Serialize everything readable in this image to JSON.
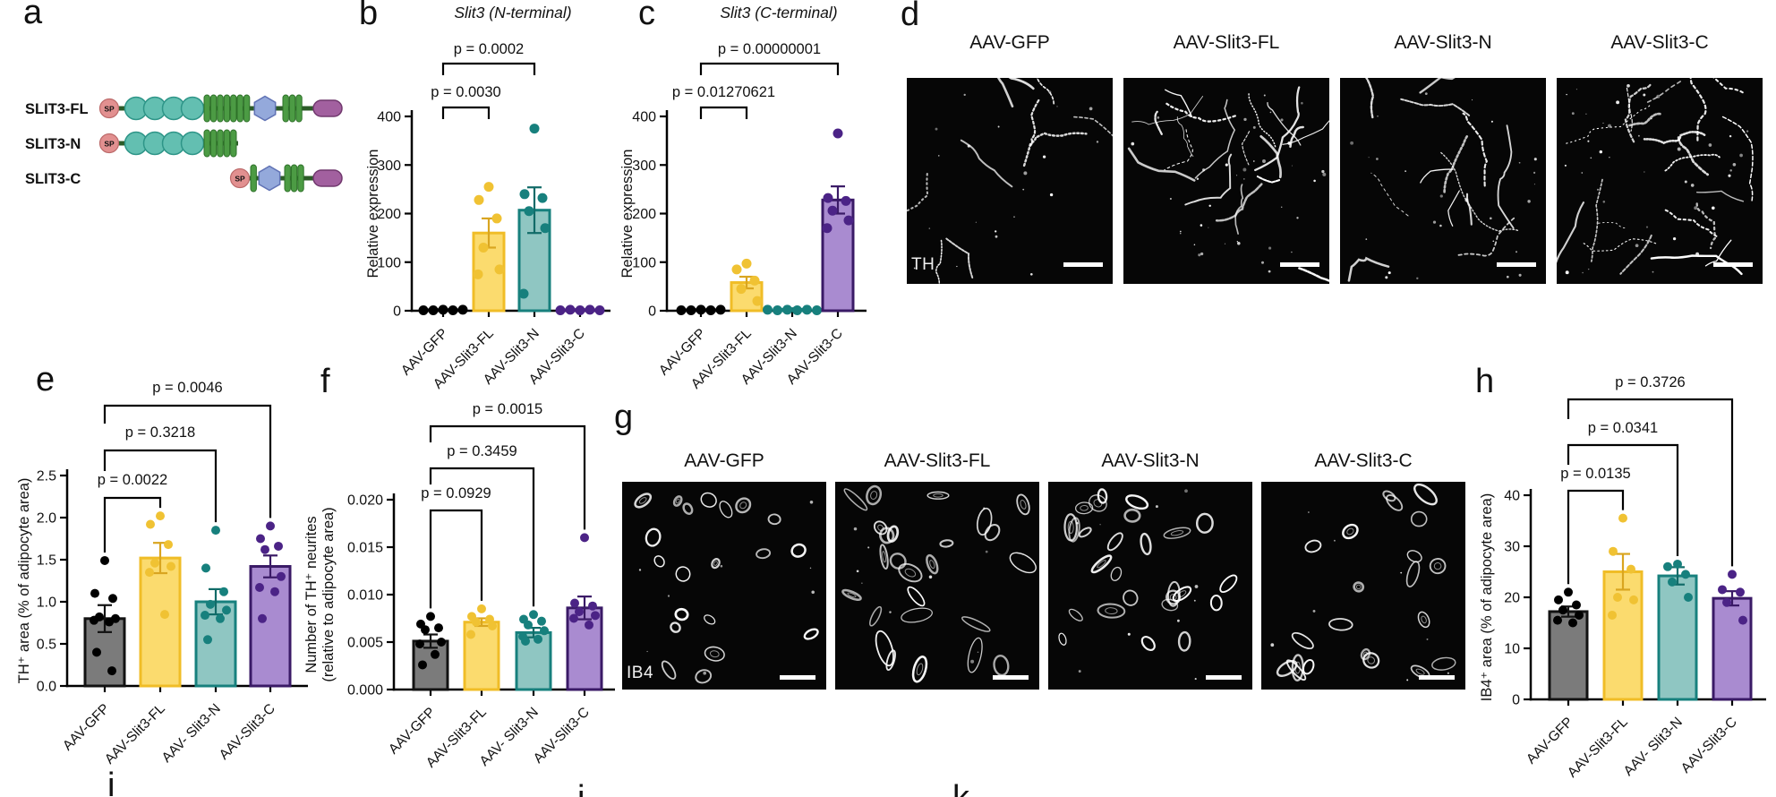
{
  "letters": {
    "a": "a",
    "b": "b",
    "c": "c",
    "d": "d",
    "e": "e",
    "f": "f",
    "g": "g",
    "h": "h",
    "i": "i",
    "j": "j",
    "k": "k"
  },
  "panel_a": {
    "sp_label": "SP",
    "rows": [
      {
        "label": "SLIT3-FL"
      },
      {
        "label": "SLIT3-N"
      },
      {
        "label": "SLIT3-C"
      }
    ],
    "colors": {
      "sp_fill": "#e29090",
      "sp_stroke": "#bc6a6a",
      "sp_text": "#731d1d",
      "lrr_fill": "#63bfb1",
      "lrr_stroke": "#2e9588",
      "egf_fill": "#4c9b44",
      "egf_stroke": "#2e7129",
      "hex_fill": "#94a9db",
      "hex_stroke": "#6173b5",
      "pill_fill": "#a2609f",
      "pill_stroke": "#71386e",
      "line": "#2c5b28"
    }
  },
  "colors": {
    "gfp": {
      "fill": "#7b7b7b",
      "stroke": "#121212",
      "point": "#000000",
      "err": "#121212"
    },
    "fl": {
      "fill": "#fbdb6e",
      "stroke": "#f0bd27",
      "point": "#f0c233",
      "err": "#d9a520"
    },
    "n": {
      "fill": "#8fc6c2",
      "stroke": "#17807d",
      "point": "#17807d",
      "err": "#116b68"
    },
    "c": {
      "fill": "#a98bd0",
      "stroke": "#3a1a66",
      "point": "#4b2386",
      "err": "#3a1a66"
    }
  },
  "chart_data": [
    {
      "id": "b",
      "type": "bar",
      "title": "Slit3 (N-terminal)",
      "ylabel": "Relative expression",
      "ylim": [
        0,
        400
      ],
      "ytick_values": [
        0,
        100,
        200,
        300,
        400
      ],
      "ytick_labels": [
        "0",
        "100",
        "200",
        "300",
        "400"
      ],
      "categories": [
        "AAV-GFP",
        "AAV-Slit3-FL",
        "AAV-Slit3-N",
        "AAV-Slit3-C"
      ],
      "cat_colors": [
        "gfp",
        "fl",
        "n",
        "c"
      ],
      "values": [
        2,
        160,
        207,
        2
      ],
      "errors": [
        1,
        30,
        47,
        1
      ],
      "points": [
        [
          1,
          1,
          2,
          1,
          2
        ],
        [
          255,
          228,
          190,
          130,
          85,
          75
        ],
        [
          375,
          240,
          232,
          205,
          170,
          35
        ],
        [
          1,
          2,
          1,
          2,
          1
        ]
      ],
      "pvalues": [
        {
          "label": "p = 0.0030",
          "from": 0,
          "to": 1
        },
        {
          "label": "p = 0.0002",
          "from": 0,
          "to": 2
        }
      ],
      "grid": false,
      "legend": "none"
    },
    {
      "id": "c",
      "type": "bar",
      "title": "Slit3 (C-terminal)",
      "ylabel": "Relative expression",
      "ylim": [
        0,
        400
      ],
      "ytick_values": [
        0,
        100,
        200,
        300,
        400
      ],
      "ytick_labels": [
        "0",
        "100",
        "200",
        "300",
        "400"
      ],
      "categories": [
        "AAV-GFP",
        "AAV-Slit3-FL",
        "AAV-Slit3-N",
        "AAV-Slit3-C"
      ],
      "cat_colors": [
        "gfp",
        "fl",
        "n",
        "c"
      ],
      "values": [
        2,
        58,
        3,
        228
      ],
      "errors": [
        1,
        12,
        2,
        28
      ],
      "points": [
        [
          1,
          1,
          2,
          1,
          2
        ],
        [
          97,
          85,
          62,
          45,
          20
        ],
        [
          2,
          1,
          2,
          1,
          2,
          1
        ],
        [
          365,
          232,
          226,
          206,
          186,
          170
        ]
      ],
      "pvalues": [
        {
          "label": "p = 0.01270621",
          "from": 0,
          "to": 1
        },
        {
          "label": "p = 0.00000001",
          "from": 0,
          "to": 3
        }
      ],
      "grid": false,
      "legend": "none"
    },
    {
      "id": "e",
      "type": "bar",
      "title": "",
      "ylabel": "TH⁺ area (% of adipocyte area)",
      "ylim": [
        0,
        2.5
      ],
      "ytick_values": [
        0,
        0.5,
        1,
        1.5,
        2,
        2.5
      ],
      "ytick_labels": [
        "0.0",
        "0.5",
        "1.0",
        "1.5",
        "2.0",
        "2.5"
      ],
      "categories": [
        "AAV-GFP",
        "AAV-Slit3-FL",
        "AAV- Slit3-N",
        "AAV-Slit3-C"
      ],
      "cat_colors": [
        "gfp",
        "fl",
        "n",
        "c"
      ],
      "values": [
        0.8,
        1.52,
        1.0,
        1.42
      ],
      "errors": [
        0.16,
        0.18,
        0.15,
        0.13
      ],
      "points": [
        [
          1.49,
          1.1,
          1.04,
          0.82,
          0.8,
          0.78,
          0.76,
          0.4,
          0.18
        ],
        [
          2.02,
          1.92,
          1.68,
          1.46,
          1.42,
          1.35,
          0.85
        ],
        [
          1.85,
          1.4,
          1.12,
          0.97,
          0.9,
          0.84,
          0.8,
          0.55
        ],
        [
          1.9,
          1.75,
          1.66,
          1.62,
          1.3,
          1.17,
          1.12,
          0.8
        ]
      ],
      "pvalues": [
        {
          "label": "p = 0.0022",
          "from": 0,
          "to": 1
        },
        {
          "label": "p = 0.3218",
          "from": 0,
          "to": 2
        },
        {
          "label": "p = 0.0046",
          "from": 0,
          "to": 3
        }
      ],
      "grid": false,
      "legend": "none"
    },
    {
      "id": "f",
      "type": "bar",
      "title": "",
      "ylabel": [
        "Number of TH⁺  neurites",
        "(relative to adipocyte area)"
      ],
      "ylim": [
        0,
        0.02
      ],
      "ytick_values": [
        0,
        0.005,
        0.01,
        0.015,
        0.02
      ],
      "ytick_labels": [
        "0.000",
        "0.005",
        "0.010",
        "0.015",
        "0.020"
      ],
      "categories": [
        "AAV-GFP",
        "AAV-Slit3-FL",
        "AAV- Slit3-N",
        "AAV-Slit3-C"
      ],
      "cat_colors": [
        "gfp",
        "fl",
        "n",
        "c"
      ],
      "values": [
        0.0051,
        0.0071,
        0.006,
        0.0086
      ],
      "errors": [
        0.0007,
        0.0004,
        0.0005,
        0.0012
      ],
      "points": [
        [
          0.0077,
          0.0069,
          0.0065,
          0.0063,
          0.005,
          0.0048,
          0.0037,
          0.0026
        ],
        [
          0.0085,
          0.0077,
          0.0074,
          0.0071,
          0.0067,
          0.0058
        ],
        [
          0.0079,
          0.0074,
          0.0072,
          0.0068,
          0.0062,
          0.0056,
          0.0053,
          0.0051
        ],
        [
          0.016,
          0.0091,
          0.0088,
          0.0082,
          0.0078,
          0.0075,
          0.0068
        ]
      ],
      "pvalues": [
        {
          "label": "p = 0.0929",
          "from": 0,
          "to": 1
        },
        {
          "label": "p = 0.3459",
          "from": 0,
          "to": 2
        },
        {
          "label": "p = 0.0015",
          "from": 0,
          "to": 3
        }
      ],
      "grid": false,
      "legend": "none"
    },
    {
      "id": "h",
      "type": "bar",
      "title": "",
      "ylabel": "IB4⁺  area (% of adipocyte area)",
      "ylim": [
        0,
        40
      ],
      "ytick_values": [
        0,
        10,
        20,
        30,
        40
      ],
      "ytick_labels": [
        "0",
        "10",
        "20",
        "30",
        "40"
      ],
      "categories": [
        "AAV-GFP",
        "AAV-Slit3-FL",
        "AAV- Slit3-N",
        "AAV-Slit3-C"
      ],
      "cat_colors": [
        "gfp",
        "fl",
        "n",
        "c"
      ],
      "values": [
        17.2,
        25,
        24.2,
        19.8
      ],
      "errors": [
        1.0,
        3.5,
        1.7,
        1.4
      ],
      "points": [
        [
          21,
          19.5,
          18.5,
          17.5,
          16.5,
          15.5,
          15
        ],
        [
          35.5,
          29,
          25.5,
          20,
          19.5,
          16.5
        ],
        [
          26.5,
          26,
          24.5,
          23,
          20
        ],
        [
          24.5,
          21.5,
          21,
          19,
          15.5
        ]
      ],
      "pvalues": [
        {
          "label": "p = 0.0135",
          "from": 0,
          "to": 1
        },
        {
          "label": "p = 0.0341",
          "from": 0,
          "to": 2
        },
        {
          "label": "p = 0.3726",
          "from": 0,
          "to": 3
        }
      ],
      "grid": false,
      "legend": "none"
    }
  ],
  "panel_d": {
    "col_labels": [
      "AAV-GFP",
      "AAV-Slit3-FL",
      "AAV-Slit3-N",
      "AAV-Slit3-C"
    ],
    "stain": "TH"
  },
  "panel_g": {
    "col_labels": [
      "AAV-GFP",
      "AAV-Slit3-FL",
      "AAV-Slit3-N",
      "AAV-Slit3-C"
    ],
    "stain": "IB4"
  }
}
